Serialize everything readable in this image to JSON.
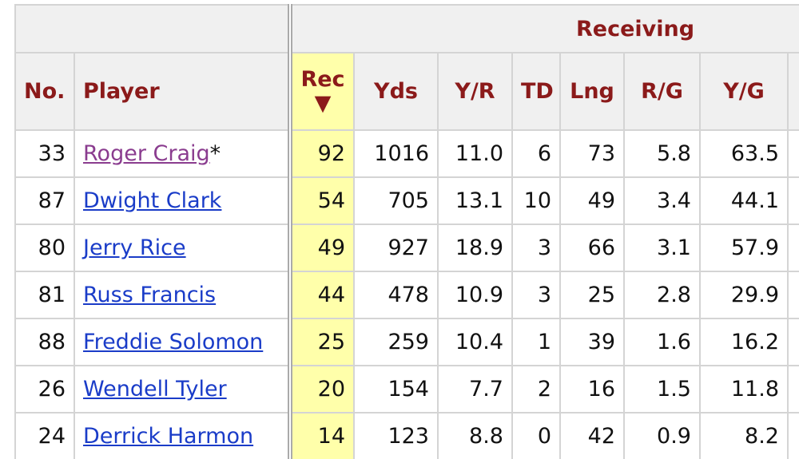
{
  "table": {
    "group_header": "Receiving",
    "headers": {
      "no": "No.",
      "player": "Player",
      "rec": "Rec",
      "sort_indicator": "▼",
      "yds": "Yds",
      "yr": "Y/R",
      "td": "TD",
      "lng": "Lng",
      "rg": "R/G",
      "yg": "Y/G"
    },
    "rows": [
      {
        "no": "33",
        "player": "Roger Craig",
        "marker": "*",
        "rec": "92",
        "yds": "1016",
        "yr": "11.0",
        "td": "6",
        "lng": "73",
        "rg": "5.8",
        "yg": "63.5"
      },
      {
        "no": "87",
        "player": "Dwight Clark",
        "rec": "54",
        "yds": "705",
        "yr": "13.1",
        "td": "10",
        "lng": "49",
        "rg": "3.4",
        "yg": "44.1"
      },
      {
        "no": "80",
        "player": "Jerry Rice",
        "rec": "49",
        "yds": "927",
        "yr": "18.9",
        "td": "3",
        "lng": "66",
        "rg": "3.1",
        "yg": "57.9"
      },
      {
        "no": "81",
        "player": "Russ Francis",
        "rec": "44",
        "yds": "478",
        "yr": "10.9",
        "td": "3",
        "lng": "25",
        "rg": "2.8",
        "yg": "29.9"
      },
      {
        "no": "88",
        "player": "Freddie Solomon",
        "rec": "25",
        "yds": "259",
        "yr": "10.4",
        "td": "1",
        "lng": "39",
        "rg": "1.6",
        "yg": "16.2"
      },
      {
        "no": "26",
        "player": "Wendell Tyler",
        "rec": "20",
        "yds": "154",
        "yr": "7.7",
        "td": "2",
        "lng": "16",
        "rg": "1.5",
        "yg": "11.8"
      },
      {
        "no": "24",
        "player": "Derrick Harmon",
        "rec": "14",
        "yds": "123",
        "yr": "8.8",
        "td": "0",
        "lng": "42",
        "rg": "0.9",
        "yg": "8.2"
      }
    ]
  }
}
